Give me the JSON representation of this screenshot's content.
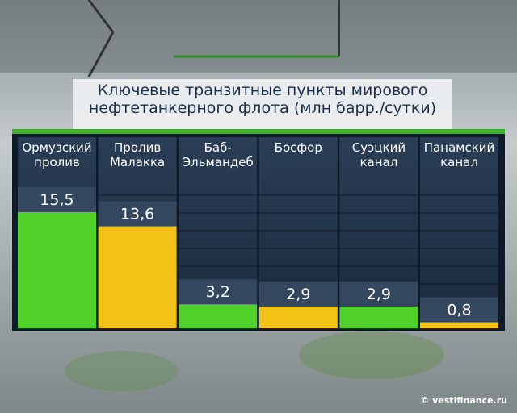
{
  "chart_data": {
    "type": "bar",
    "title": "Ключевые транзитные пункты мирового\nнефтетанкерного флота (млн барр./сутки)",
    "categories": [
      "Ормузский\nпролив",
      "Пролив\nМалакка",
      "Баб-\nЭльмандеб",
      "Босфор",
      "Суэцкий\nканал",
      "Панамский\nканал"
    ],
    "values": [
      15.5,
      13.6,
      3.2,
      2.9,
      2.9,
      0.8
    ],
    "value_labels": [
      "15,5",
      "13,6",
      "3,2",
      "2,9",
      "2,9",
      "0,8"
    ],
    "colors": [
      "#4fd12a",
      "#f2c316",
      "#4fd12a",
      "#f2c316",
      "#4fd12a",
      "#f2c316"
    ],
    "source": "© vestifinance.ru"
  }
}
